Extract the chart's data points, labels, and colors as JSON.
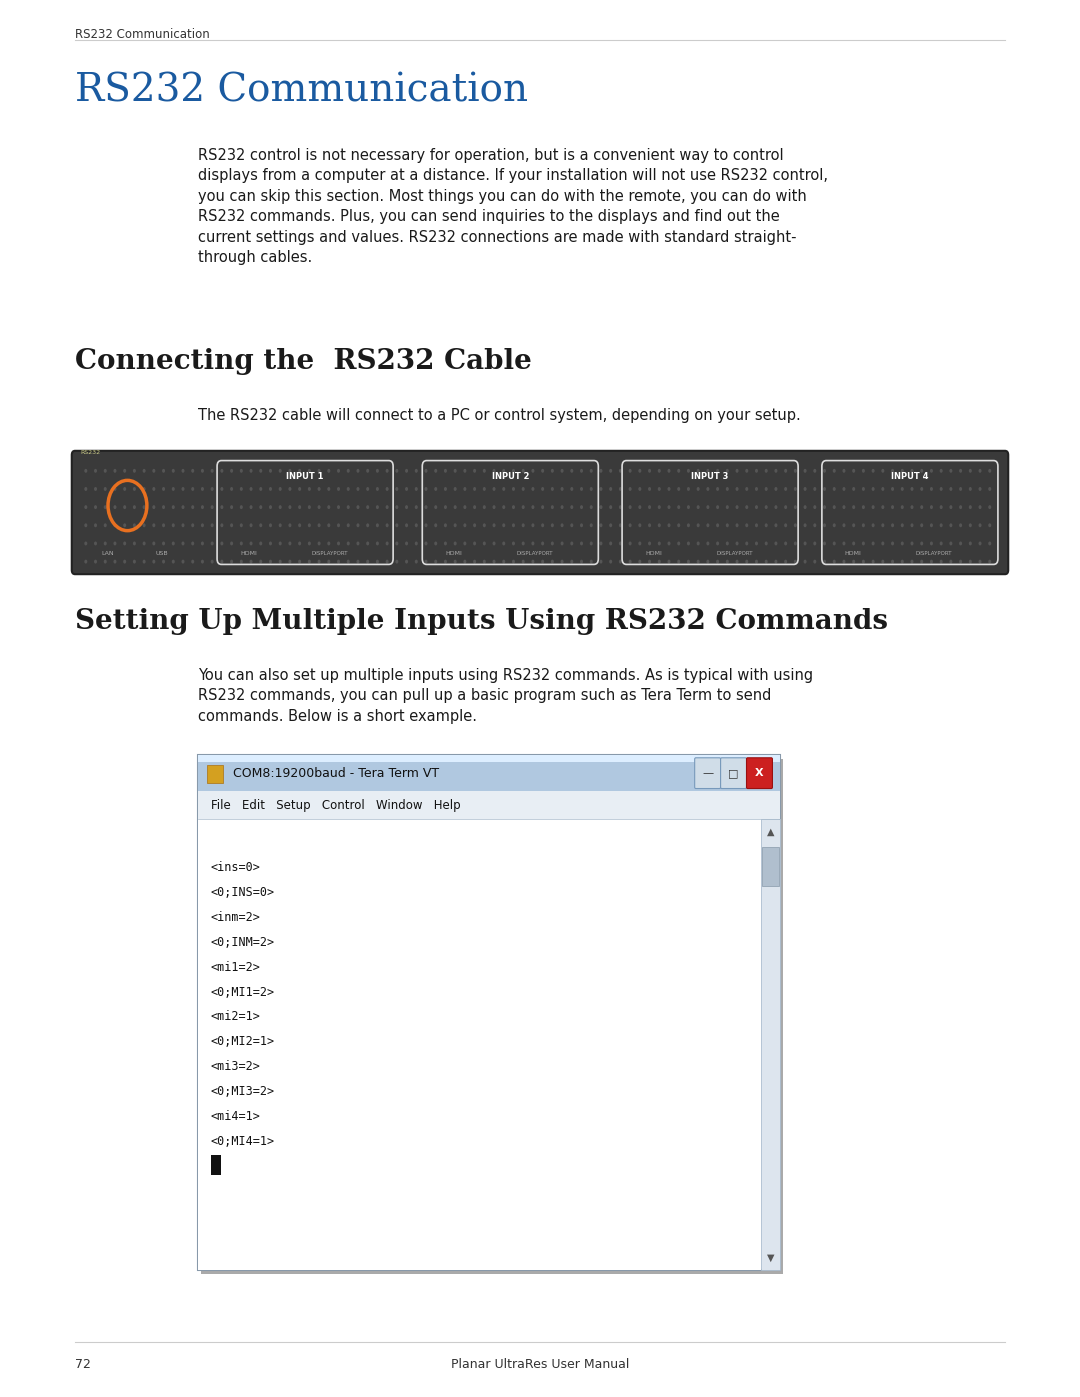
{
  "page_bg": "#ffffff",
  "header_text": "RS232 Communication",
  "header_line_color": "#cccccc",
  "title_text": "RS232 Communication",
  "title_color": "#1a5aa0",
  "title_fontsize": 28,
  "body_text_1": "RS232 control is not necessary for operation, but is a convenient way to control\ndisplays from a computer at a distance. If your installation will not use RS232 control,\nyou can skip this section. Most things you can do with the remote, you can do with\nRS232 commands. Plus, you can send inquiries to the displays and find out the\ncurrent settings and values. RS232 connections are made with standard straight-\nthrough cables.",
  "section1_title": "Connecting the  RS232 Cable",
  "section1_title_fontsize": 20,
  "section1_body": "The RS232 cable will connect to a PC or control system, depending on your setup.",
  "section2_title": "Setting Up Multiple Inputs Using RS232 Commands",
  "section2_title_fontsize": 20,
  "section2_body": "You can also set up multiple inputs using RS232 commands. As is typical with using\nRS232 commands, you can pull up a basic program such as Tera Term to send\ncommands. Below is a short example.",
  "terminal_title": "COM8:19200baud - Tera Term VT",
  "terminal_menu": "File   Edit   Setup   Control   Window   Help",
  "terminal_lines": [
    "<ins=0>",
    "<0;INS=0>",
    "<inm=2>",
    "<0;INM=2>",
    "<mi1=2>",
    "<0;MI1=2>",
    "<mi2=1>",
    "<0;MI2=1>",
    "<mi3=2>",
    "<0;MI3=2>",
    "<mi4=1>",
    "<0;MI4=1>"
  ],
  "footer_page": "72",
  "footer_text": "Planar UltraRes User Manual",
  "footer_line_color": "#cccccc"
}
